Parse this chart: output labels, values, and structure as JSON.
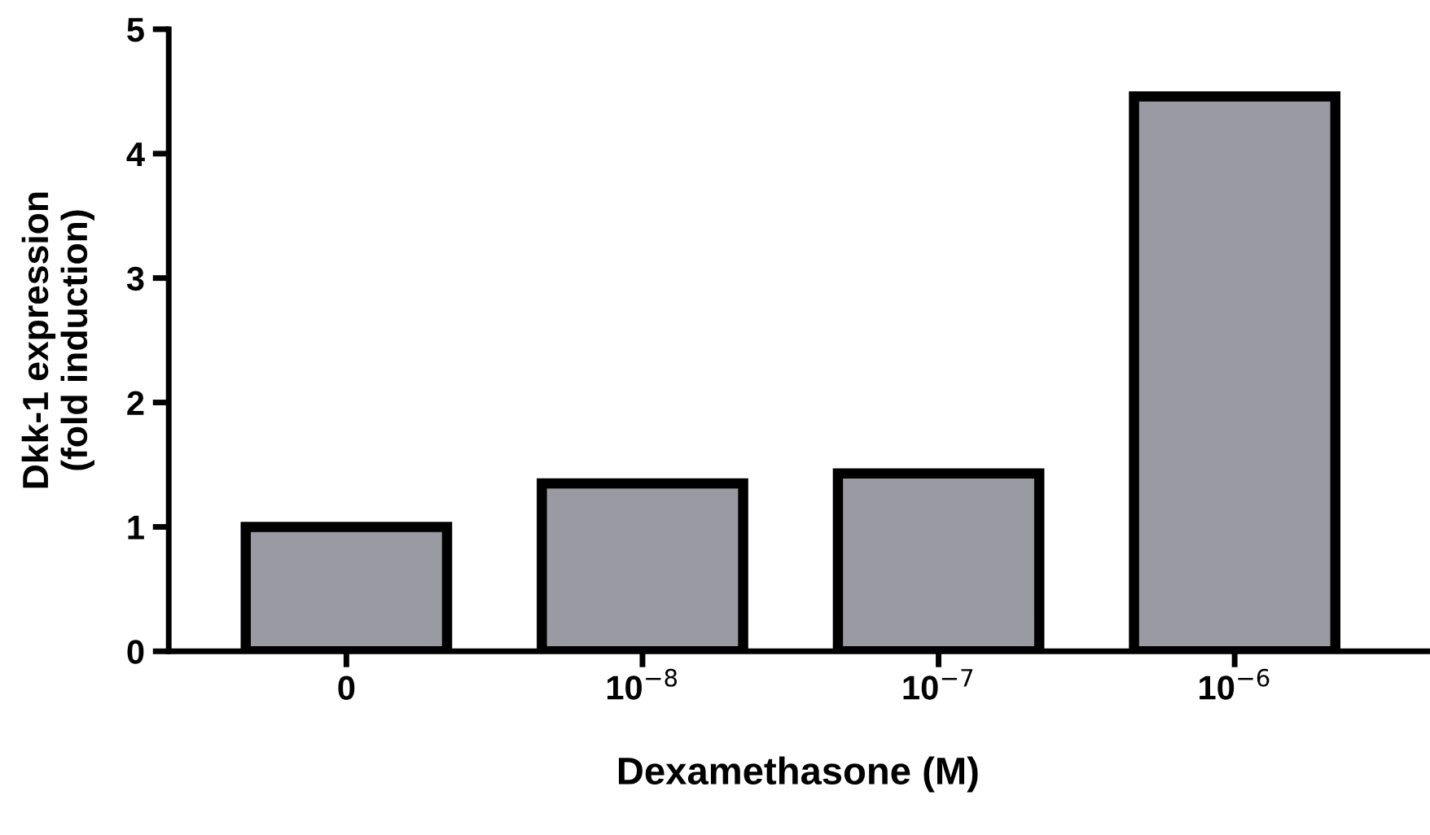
{
  "chart_data": {
    "type": "bar",
    "xlabel": "Dexamethasone (M)",
    "ylabel": "Dkk-1 expression\n(fold induction)",
    "categories": [
      "0",
      "10$^{−8}$",
      "10$^{−7}$",
      "10$^{−6}$"
    ],
    "values": [
      1.0,
      1.35,
      1.43,
      4.46
    ],
    "color": "#9a9aa2",
    "ylim": [
      0,
      5
    ],
    "yticks": [
      0,
      1,
      2,
      3,
      4,
      5
    ],
    "grid": false
  }
}
